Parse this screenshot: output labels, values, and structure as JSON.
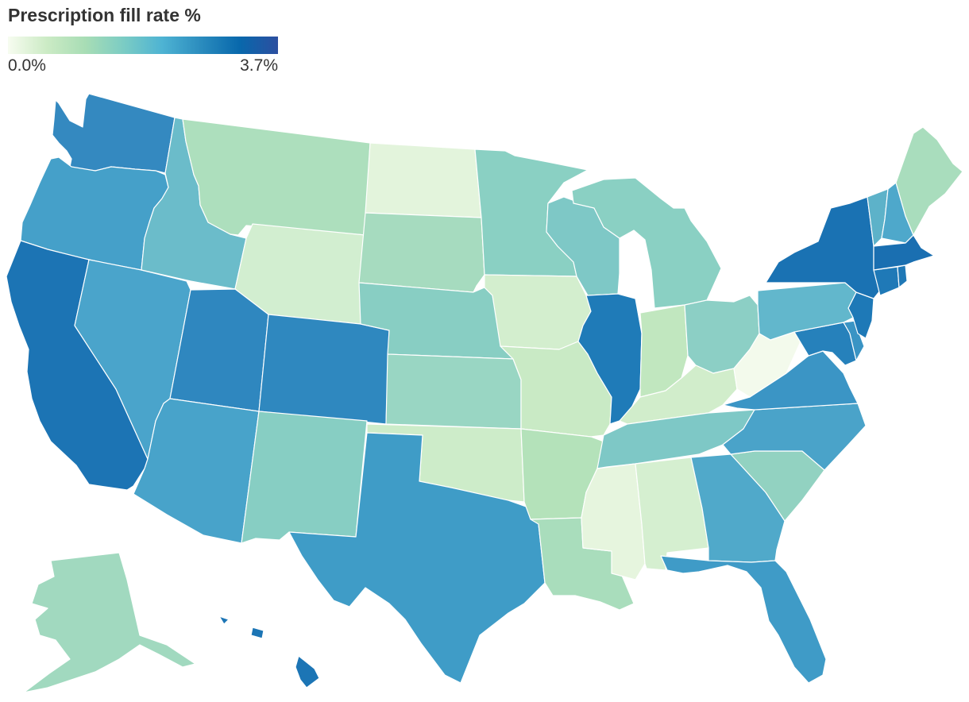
{
  "title": "Prescription fill rate %",
  "legend": {
    "min_label": "0.0%",
    "max_label": "3.7%",
    "min_value": 0.0,
    "max_value": 3.7,
    "colors": [
      "#f7fcf0",
      "#ccebc5",
      "#a8ddb5",
      "#7bccc4",
      "#4eb3d3",
      "#2b8cbe",
      "#0868ac",
      "#2c4fa0"
    ]
  },
  "chart_data": {
    "type": "choropleth",
    "title": "Prescription fill rate %",
    "value_range": [
      0.0,
      3.7
    ],
    "states": [
      {
        "name": "Washington",
        "color": "#3489c0"
      },
      {
        "name": "Oregon",
        "color": "#45a0c9"
      },
      {
        "name": "California",
        "color": "#1c74b4"
      },
      {
        "name": "Nevada",
        "color": "#4aa4cb"
      },
      {
        "name": "Idaho",
        "color": "#6bbcca"
      },
      {
        "name": "Montana",
        "color": "#addfbd"
      },
      {
        "name": "Wyoming",
        "color": "#d2eed0"
      },
      {
        "name": "Utah",
        "color": "#2f87bf"
      },
      {
        "name": "Colorado",
        "color": "#2f88bf"
      },
      {
        "name": "Arizona",
        "color": "#48a3ca"
      },
      {
        "name": "New Mexico",
        "color": "#87cec3"
      },
      {
        "name": "North Dakota",
        "color": "#e3f4dc"
      },
      {
        "name": "South Dakota",
        "color": "#a6dbbf"
      },
      {
        "name": "Nebraska",
        "color": "#88cec3"
      },
      {
        "name": "Kansas",
        "color": "#99d6c3"
      },
      {
        "name": "Oklahoma",
        "color": "#cdecc9"
      },
      {
        "name": "Texas",
        "color": "#3f9cc7"
      },
      {
        "name": "Minnesota",
        "color": "#8ad0c3"
      },
      {
        "name": "Iowa",
        "color": "#d3eece"
      },
      {
        "name": "Missouri",
        "color": "#c9eac5"
      },
      {
        "name": "Arkansas",
        "color": "#b4e2ba"
      },
      {
        "name": "Louisiana",
        "color": "#a9ddbc"
      },
      {
        "name": "Wisconsin",
        "color": "#7ec8c6"
      },
      {
        "name": "Illinois",
        "color": "#1f7bb8"
      },
      {
        "name": "Michigan",
        "color": "#8ad0c3"
      },
      {
        "name": "Indiana",
        "color": "#c1e7bf"
      },
      {
        "name": "Ohio",
        "color": "#8ccfc5"
      },
      {
        "name": "Kentucky",
        "color": "#d1edcb"
      },
      {
        "name": "Tennessee",
        "color": "#7ec8c6"
      },
      {
        "name": "Mississippi",
        "color": "#e6f5de"
      },
      {
        "name": "Alabama",
        "color": "#d5efd0"
      },
      {
        "name": "Georgia",
        "color": "#50a9ca"
      },
      {
        "name": "Florida",
        "color": "#3f9bc7"
      },
      {
        "name": "South Carolina",
        "color": "#92d2c1"
      },
      {
        "name": "North Carolina",
        "color": "#4aa3c9"
      },
      {
        "name": "Virginia",
        "color": "#3b95c5"
      },
      {
        "name": "West Virginia",
        "color": "#f3faec"
      },
      {
        "name": "Maryland",
        "color": "#2681bb"
      },
      {
        "name": "Delaware",
        "color": "#3a94c4"
      },
      {
        "name": "New Jersey",
        "color": "#1e79b7"
      },
      {
        "name": "Pennsylvania",
        "color": "#62b7cc"
      },
      {
        "name": "New York",
        "color": "#1a72b3"
      },
      {
        "name": "Connecticut",
        "color": "#1f79b7"
      },
      {
        "name": "Rhode Island",
        "color": "#1f78b6"
      },
      {
        "name": "Massachusetts",
        "color": "#1a6fb1"
      },
      {
        "name": "Vermont",
        "color": "#5db2c9"
      },
      {
        "name": "New Hampshire",
        "color": "#4ea8cb"
      },
      {
        "name": "Maine",
        "color": "#a9ddbd"
      },
      {
        "name": "Alaska",
        "color": "#a1d9bf"
      },
      {
        "name": "Hawaii",
        "color": "#1c75b5"
      }
    ]
  }
}
